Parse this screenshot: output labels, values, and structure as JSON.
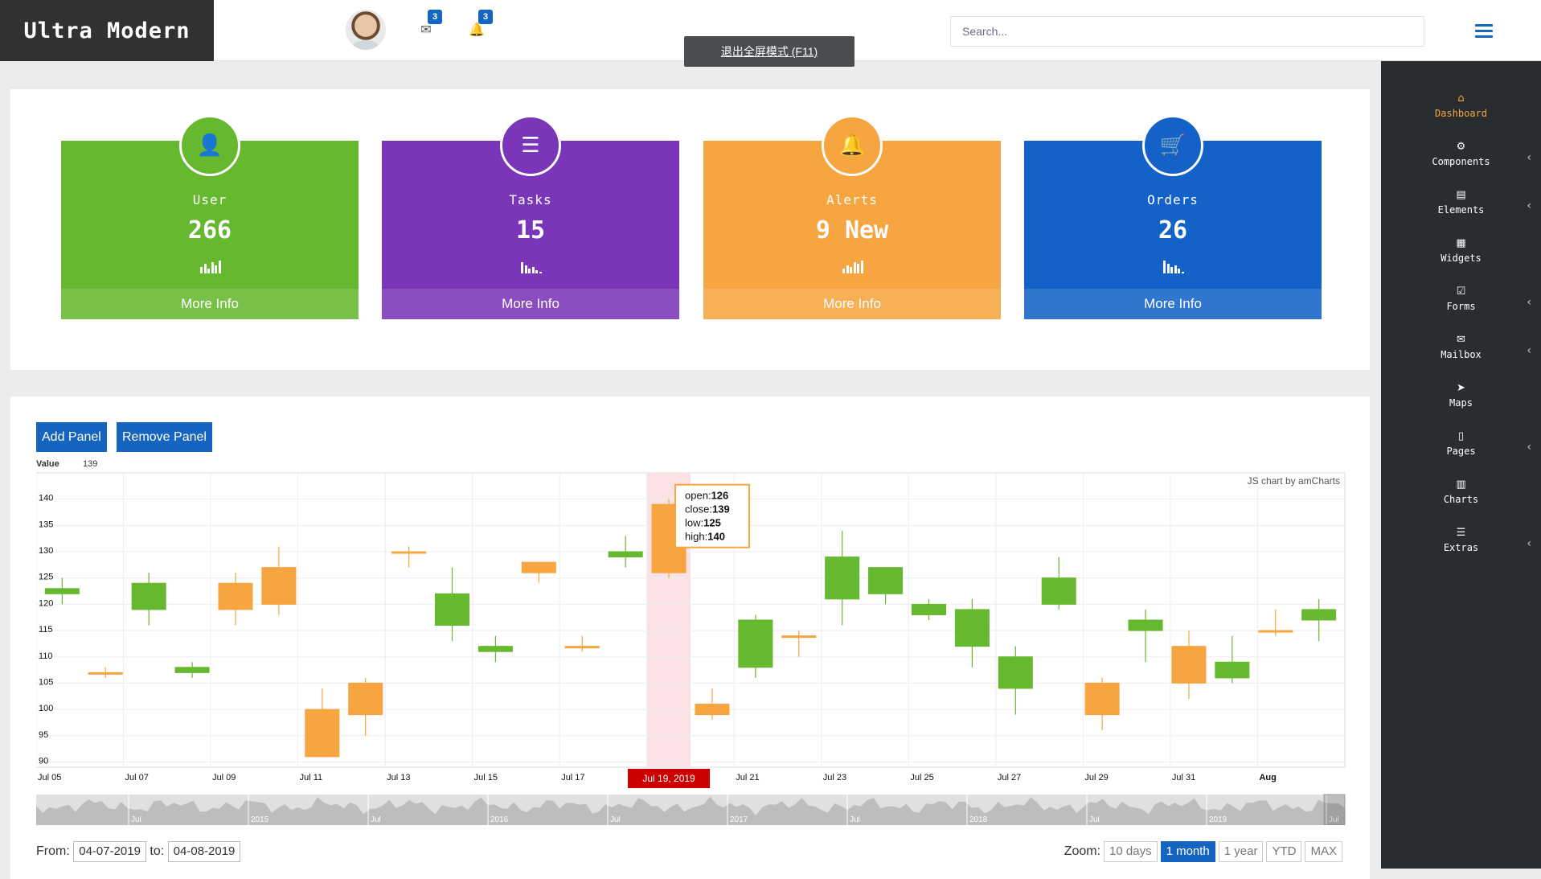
{
  "header": {
    "brand": "Ultra Modern",
    "mail_badge": "3",
    "bell_badge": "3",
    "fullscreen_hint": "退出全屏模式 (F11)",
    "search_placeholder": "Search..."
  },
  "sidebar": {
    "items": [
      {
        "label": "Dashboard",
        "icon": "home-icon",
        "glyph": "⌂",
        "active": true,
        "chevron": false
      },
      {
        "label": "Components",
        "icon": "cogs-icon",
        "glyph": "⚙",
        "active": false,
        "chevron": true
      },
      {
        "label": "Elements",
        "icon": "book-icon",
        "glyph": "▤",
        "active": false,
        "chevron": true
      },
      {
        "label": "Widgets",
        "icon": "grid-icon",
        "glyph": "▦",
        "active": false,
        "chevron": false
      },
      {
        "label": "Forms",
        "icon": "check-square-icon",
        "glyph": "☑",
        "active": false,
        "chevron": true
      },
      {
        "label": "Mailbox",
        "icon": "envelope-icon",
        "glyph": "✉",
        "active": false,
        "chevron": true
      },
      {
        "label": "Maps",
        "icon": "location-arrow-icon",
        "glyph": "➤",
        "active": false,
        "chevron": false
      },
      {
        "label": "Pages",
        "icon": "file-icon",
        "glyph": "▯",
        "active": false,
        "chevron": true
      },
      {
        "label": "Charts",
        "icon": "bar-chart-icon",
        "glyph": "▥",
        "active": false,
        "chevron": false
      },
      {
        "label": "Extras",
        "icon": "list-icon",
        "glyph": "☰",
        "active": false,
        "chevron": true
      }
    ]
  },
  "stats": [
    {
      "title": "User",
      "value": "266",
      "more": "More Info",
      "color": "#66b82f",
      "icon": "user-icon",
      "glyph": "👤"
    },
    {
      "title": "Tasks",
      "value": "15",
      "more": "More Info",
      "color": "#7b35b8",
      "icon": "list-icon",
      "glyph": "☰"
    },
    {
      "title": "Alerts",
      "value": "9 New",
      "more": "More Info",
      "color": "#f7a540",
      "icon": "bell-icon",
      "glyph": "🔔"
    },
    {
      "title": "Orders",
      "value": "26",
      "more": "More Info",
      "color": "#1462c8",
      "icon": "cart-icon",
      "glyph": "🛒"
    }
  ],
  "panel": {
    "add_label": "Add Panel",
    "remove_label": "Remove Panel",
    "value_label": "Value",
    "value_num": "139",
    "credit": "JS chart by amCharts"
  },
  "chart_data": {
    "type": "candlestick",
    "ylim": [
      89,
      145
    ],
    "yticks": [
      90,
      95,
      100,
      105,
      110,
      115,
      120,
      125,
      130,
      135,
      140
    ],
    "x_labels": [
      "Jul 05",
      "Jul 07",
      "Jul 09",
      "Jul 11",
      "Jul 13",
      "Jul 15",
      "Jul 17",
      "",
      "Jul 21",
      "Jul 23",
      "Jul 25",
      "Jul 27",
      "Jul 29",
      "Jul 31",
      "Aug"
    ],
    "highlight_label": "Jul 19, 2019",
    "highlight_index": 14,
    "tooltip": {
      "open": 126,
      "close": 139,
      "low": 125,
      "high": 140
    },
    "candles": [
      {
        "open": 123,
        "close": 122,
        "low": 120,
        "high": 125
      },
      {
        "open": 107,
        "close": 107,
        "low": 106,
        "high": 108
      },
      {
        "open": 124,
        "close": 119,
        "low": 116,
        "high": 126
      },
      {
        "open": 108,
        "close": 107,
        "low": 106,
        "high": 109
      },
      {
        "open": 119,
        "close": 124,
        "low": 116,
        "high": 126
      },
      {
        "open": 120,
        "close": 127,
        "low": 118,
        "high": 131
      },
      {
        "open": 91,
        "close": 100,
        "low": 91,
        "high": 104
      },
      {
        "open": 99,
        "close": 105,
        "low": 95,
        "high": 106
      },
      {
        "open": 130,
        "close": 130,
        "low": 127,
        "high": 131
      },
      {
        "open": 122,
        "close": 116,
        "low": 113,
        "high": 127
      },
      {
        "open": 112,
        "close": 111,
        "low": 109,
        "high": 114
      },
      {
        "open": 126,
        "close": 128,
        "low": 124,
        "high": 128
      },
      {
        "open": 112,
        "close": 112,
        "low": 111,
        "high": 114
      },
      {
        "open": 130,
        "close": 129,
        "low": 127,
        "high": 133
      },
      {
        "open": 126,
        "close": 139,
        "low": 125,
        "high": 140
      },
      {
        "open": 99,
        "close": 101,
        "low": 98,
        "high": 104
      },
      {
        "open": 117,
        "close": 108,
        "low": 106,
        "high": 118
      },
      {
        "open": 114,
        "close": 114,
        "low": 110,
        "high": 115
      },
      {
        "open": 129,
        "close": 121,
        "low": 116,
        "high": 134
      },
      {
        "open": 127,
        "close": 122,
        "low": 120,
        "high": 127
      },
      {
        "open": 120,
        "close": 118,
        "low": 117,
        "high": 121
      },
      {
        "open": 119,
        "close": 112,
        "low": 108,
        "high": 121
      },
      {
        "open": 110,
        "close": 104,
        "low": 99,
        "high": 112
      },
      {
        "open": 125,
        "close": 120,
        "low": 119,
        "high": 129
      },
      {
        "open": 99,
        "close": 105,
        "low": 96,
        "high": 106
      },
      {
        "open": 117,
        "close": 115,
        "low": 109,
        "high": 119
      },
      {
        "open": 105,
        "close": 112,
        "low": 102,
        "high": 115
      },
      {
        "open": 109,
        "close": 106,
        "low": 105,
        "high": 114
      },
      {
        "open": 115,
        "close": 115,
        "low": 114,
        "high": 119
      },
      {
        "open": 119,
        "close": 117,
        "low": 113,
        "high": 121
      }
    ],
    "up_color": "#f7a540",
    "down_color": "#66b82f",
    "scrollbar_labels": [
      "Jul",
      "2015",
      "Jul",
      "2016",
      "Jul",
      "2017",
      "Jul",
      "2018",
      "Jul",
      "2019",
      "Jul"
    ]
  },
  "range": {
    "from_label": "From:",
    "from_value": "04-07-2019",
    "to_label": "to:",
    "to_value": "04-08-2019",
    "zoom_label": "Zoom:",
    "zoom_options": [
      {
        "label": "10 days",
        "active": false
      },
      {
        "label": "1 month",
        "active": true
      },
      {
        "label": "1 year",
        "active": false
      },
      {
        "label": "YTD",
        "active": false
      },
      {
        "label": "MAX",
        "active": false
      }
    ]
  }
}
